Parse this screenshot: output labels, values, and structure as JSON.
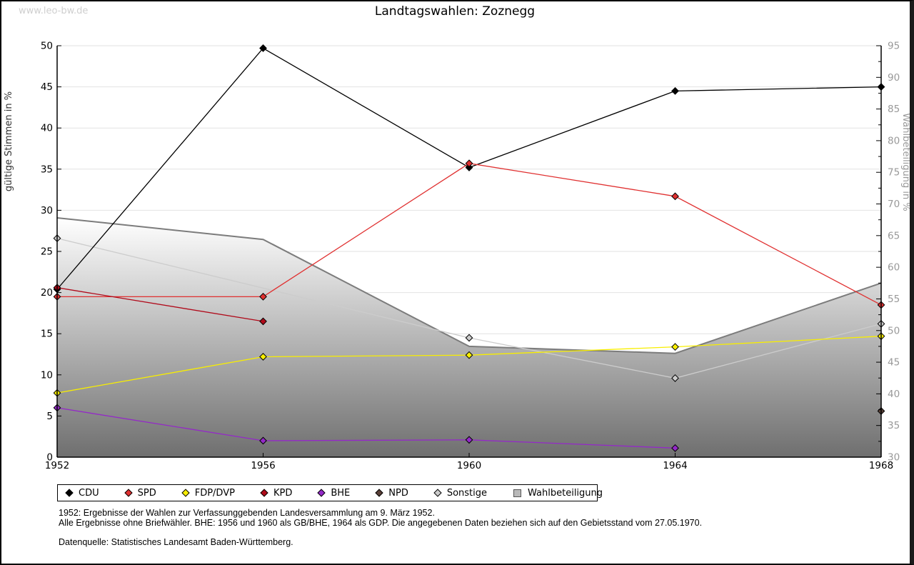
{
  "watermark": "www.leo-bw.de",
  "title": "Landtagswahlen: Zoznegg",
  "chart_data": {
    "type": "line",
    "title": "Landtagswahlen: Zoznegg",
    "x_labels": [
      "1952",
      "1956",
      "1960",
      "1964",
      "1968"
    ],
    "left_axis": {
      "label": "gültige Stimmen in %",
      "min": 0,
      "max": 50,
      "tick_step": 5
    },
    "right_axis": {
      "label": "Wahlbeteiligung in %",
      "min": 30,
      "max": 95,
      "tick_step": 5,
      "minor_tick_step": 2.5
    },
    "grid": true,
    "legend_position": "bottom",
    "series": [
      {
        "name": "CDU",
        "axis": "left",
        "color": "#000000",
        "values": [
          20.4,
          49.7,
          35.2,
          44.5,
          45.0
        ]
      },
      {
        "name": "SPD",
        "axis": "left",
        "color": "#e03030",
        "values": [
          19.5,
          19.5,
          35.7,
          31.7,
          18.5
        ]
      },
      {
        "name": "FDP/DVP",
        "axis": "left",
        "color": "#f8ee00",
        "values": [
          7.8,
          12.2,
          12.4,
          13.4,
          14.7
        ]
      },
      {
        "name": "KPD",
        "axis": "left",
        "color": "#b00a1a",
        "values": [
          20.6,
          16.5,
          null,
          null,
          null
        ]
      },
      {
        "name": "BHE",
        "axis": "left",
        "color": "#9429c8",
        "values": [
          6.0,
          2.0,
          2.1,
          1.1,
          null
        ]
      },
      {
        "name": "NPD",
        "axis": "left",
        "color": "#5a4038",
        "values": [
          null,
          null,
          null,
          null,
          5.6
        ]
      },
      {
        "name": "Sonstige",
        "axis": "left",
        "color": "#cccccc",
        "values": [
          26.6,
          null,
          14.5,
          9.6,
          16.2
        ]
      }
    ],
    "area_series": {
      "name": "Wahlbeteiligung",
      "axis": "right",
      "values": [
        67.8,
        64.4,
        47.5,
        46.4,
        57.5
      ],
      "edge_color": "#7c7c7c",
      "fill_gradient_top": "#ffffff",
      "fill_gradient_bottom": "#6f6f6f"
    }
  },
  "legend": {
    "items": [
      {
        "label": "CDU",
        "color": "#000000",
        "shape": "diamond"
      },
      {
        "label": "SPD",
        "color": "#e03030",
        "shape": "diamond"
      },
      {
        "label": "FDP/DVP",
        "color": "#f8ee00",
        "shape": "diamond"
      },
      {
        "label": "KPD",
        "color": "#b00a1a",
        "shape": "diamond"
      },
      {
        "label": "BHE",
        "color": "#9429c8",
        "shape": "diamond"
      },
      {
        "label": "NPD",
        "color": "#5a4038",
        "shape": "diamond"
      },
      {
        "label": "Sonstige",
        "color": "#cccccc",
        "shape": "diamond"
      },
      {
        "label": "Wahlbeteiligung",
        "color": "#b9b9b9",
        "shape": "square"
      }
    ]
  },
  "footnotes": [
    "1952: Ergebnisse der Wahlen zur Verfassunggebenden Landesversammlung am 9. März 1952.",
    "Alle Ergebnisse ohne Briefwähler. BHE: 1956 und 1960 als GB/BHE, 1964 als GDP. Die angegebenen Daten beziehen sich auf den Gebietsstand vom 27.05.1970."
  ],
  "source": "Datenquelle: Statistisches Landesamt Baden-Württemberg."
}
